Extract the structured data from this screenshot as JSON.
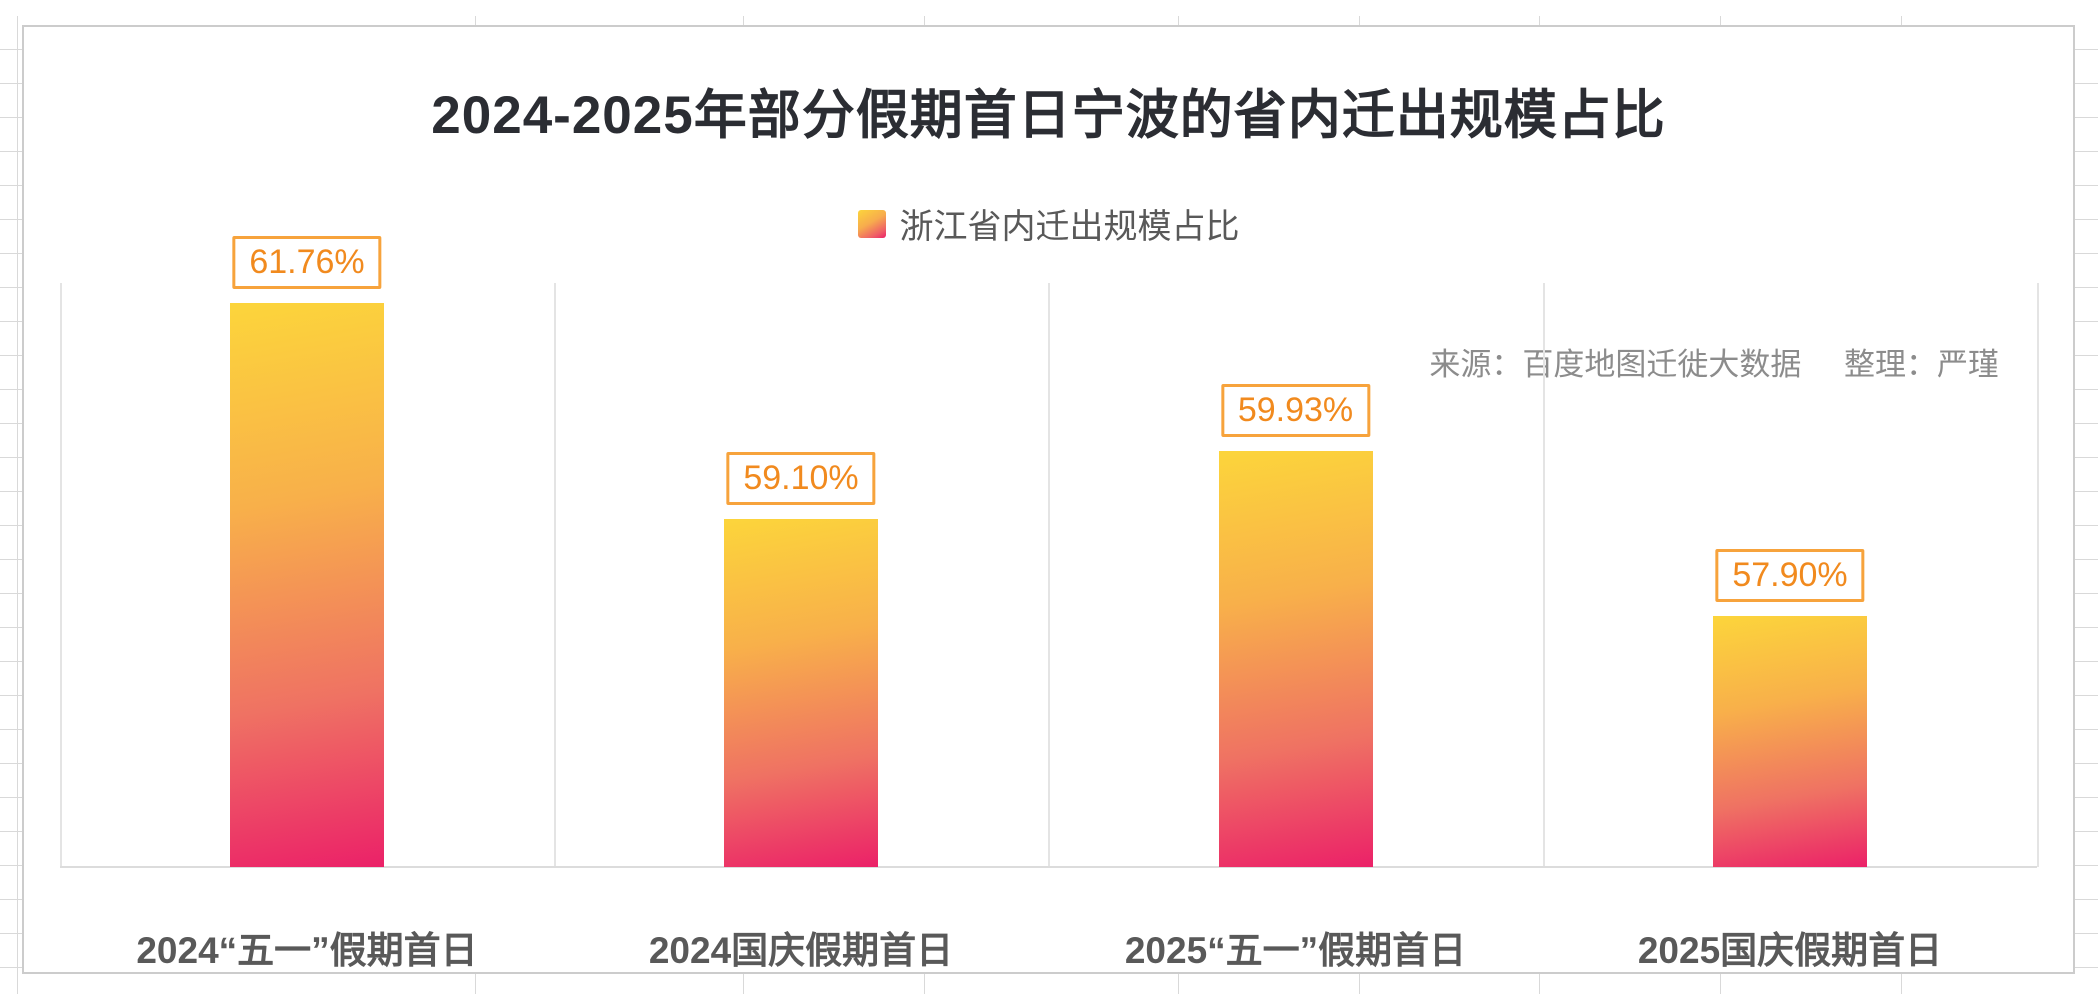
{
  "chart_data": {
    "type": "bar",
    "title": "2024-2025年部分假期首日宁波的省内迁出规模占比",
    "categories": [
      "2024“五一”假期首日",
      "2024国庆假期首日",
      "2025“五一”假期首日",
      "2025国庆假期首日"
    ],
    "series": [
      {
        "name": "浙江省内迁出规模占比",
        "values": [
          61.76,
          59.1,
          59.93,
          57.9
        ]
      }
    ],
    "value_labels": [
      "61.76%",
      "59.10%",
      "59.93%",
      "57.90%"
    ],
    "xlabel": "",
    "ylabel": "",
    "ylim": [
      54.8,
      62.2
    ],
    "y_axis_visible": false,
    "grid": "vertical-category-separators",
    "legend_position": "top-center"
  },
  "source_note": {
    "source": "来源：百度地图迁徙大数据",
    "editor": "整理：严瑾"
  },
  "colors": {
    "bar_gradient_top": "#FCD53B",
    "bar_gradient_bottom": "#EB2168",
    "value_label_border": "#F7A33C",
    "value_label_text": "#F18A1E",
    "axis_label_text": "#595959",
    "legend_text": "#595959",
    "source_text": "#8C8C8C",
    "title_text": "#2B2D33",
    "gridline": "#E4E4E4"
  }
}
